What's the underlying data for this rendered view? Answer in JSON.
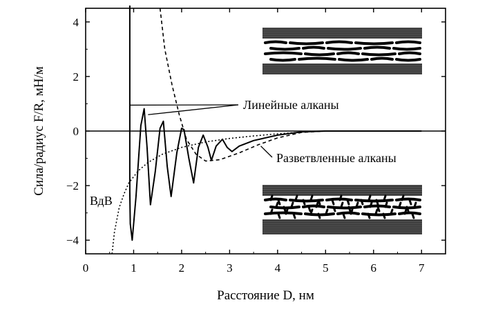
{
  "chart_data": {
    "type": "line",
    "xlabel": "Расстояние D, нм",
    "ylabel": "Сила/радиус F/R, мН/м",
    "xlim": [
      0,
      7.5
    ],
    "ylim": [
      -4.5,
      4.5
    ],
    "xticks": [
      0,
      1,
      2,
      3,
      4,
      5,
      6,
      7
    ],
    "yticks": [
      -4,
      -2,
      0,
      2,
      4
    ],
    "tick_labels_x": [
      "0",
      "1",
      "2",
      "3",
      "4",
      "5",
      "6",
      "7"
    ],
    "tick_labels_y": [
      "−4",
      "−2",
      "0",
      "2",
      "4"
    ],
    "grid": false,
    "series": [
      {
        "name": "Линейные алканы",
        "style": "solid",
        "points": [
          [
            0.92,
            4.6
          ],
          [
            0.92,
            -2.2
          ],
          [
            0.93,
            -3.4
          ],
          [
            0.97,
            -4.0
          ],
          [
            1.05,
            -2.4
          ],
          [
            1.15,
            0.2
          ],
          [
            1.22,
            0.82
          ],
          [
            1.28,
            -0.6
          ],
          [
            1.35,
            -2.7
          ],
          [
            1.45,
            -1.5
          ],
          [
            1.55,
            0.1
          ],
          [
            1.62,
            0.36
          ],
          [
            1.7,
            -1.3
          ],
          [
            1.78,
            -2.4
          ],
          [
            1.9,
            -0.8
          ],
          [
            2.0,
            0.1
          ],
          [
            2.05,
            0.05
          ],
          [
            2.15,
            -1.0
          ],
          [
            2.25,
            -1.9
          ],
          [
            2.35,
            -0.6
          ],
          [
            2.45,
            -0.15
          ],
          [
            2.55,
            -0.6
          ],
          [
            2.62,
            -1.08
          ],
          [
            2.72,
            -0.55
          ],
          [
            2.85,
            -0.3
          ],
          [
            2.95,
            -0.6
          ],
          [
            3.05,
            -0.75
          ],
          [
            3.2,
            -0.55
          ],
          [
            3.5,
            -0.35
          ],
          [
            4.0,
            -0.15
          ],
          [
            4.5,
            -0.03
          ],
          [
            5.0,
            0.0
          ],
          [
            7.0,
            0.0
          ]
        ]
      },
      {
        "name": "Разветвленные алканы",
        "style": "dashed",
        "points": [
          [
            1.55,
            4.5
          ],
          [
            1.65,
            3.0
          ],
          [
            1.8,
            1.7
          ],
          [
            1.95,
            0.6
          ],
          [
            2.1,
            -0.3
          ],
          [
            2.3,
            -0.85
          ],
          [
            2.5,
            -1.1
          ],
          [
            2.8,
            -1.05
          ],
          [
            3.2,
            -0.8
          ],
          [
            3.6,
            -0.5
          ],
          [
            4.0,
            -0.25
          ],
          [
            4.5,
            -0.05
          ],
          [
            5.0,
            0.0
          ]
        ]
      },
      {
        "name": "ВдВ",
        "style": "dotted",
        "points": [
          [
            0.55,
            -4.5
          ],
          [
            0.6,
            -3.7
          ],
          [
            0.7,
            -2.8
          ],
          [
            0.8,
            -2.3
          ],
          [
            0.9,
            -1.9
          ],
          [
            1.1,
            -1.45
          ],
          [
            1.3,
            -1.15
          ],
          [
            1.6,
            -0.85
          ],
          [
            2.0,
            -0.6
          ],
          [
            2.5,
            -0.4
          ],
          [
            3.0,
            -0.27
          ],
          [
            3.5,
            -0.18
          ],
          [
            4.0,
            -0.1
          ],
          [
            4.5,
            -0.04
          ],
          [
            5.0,
            0.0
          ]
        ]
      }
    ],
    "annotations": [
      {
        "text": "Линейные алканы",
        "points_to": [
          [
            0.92,
            0.95
          ],
          [
            1.3,
            0.6
          ]
        ]
      },
      {
        "text": "Разветвленные алканы",
        "points_to": [
          [
            3.65,
            -0.55
          ]
        ]
      },
      {
        "text": "ВдВ",
        "points_to": []
      }
    ]
  },
  "insets": [
    {
      "name": "linear-alkane-film",
      "position": "top-right"
    },
    {
      "name": "branched-alkane-film",
      "position": "bottom-right"
    }
  ]
}
